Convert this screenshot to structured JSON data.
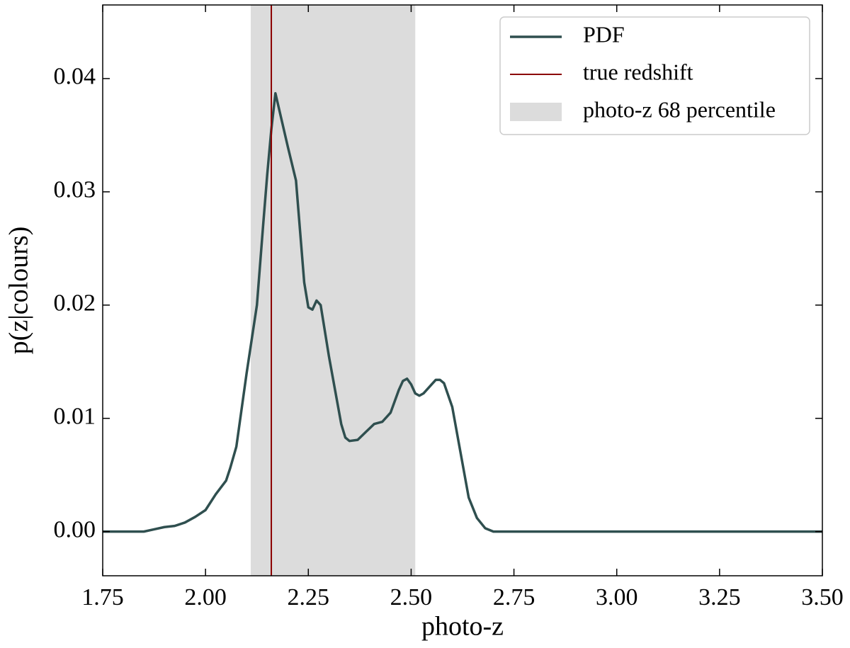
{
  "chart_data": {
    "type": "line",
    "x_label": "photo-z",
    "y_label": "p(z|colours)",
    "x": [
      1.75,
      1.85,
      1.875,
      1.9,
      1.925,
      1.95,
      1.975,
      2.0,
      2.025,
      2.05,
      2.06,
      2.075,
      2.1,
      2.125,
      2.14,
      2.15,
      2.16,
      2.17,
      2.2,
      2.22,
      2.24,
      2.25,
      2.26,
      2.27,
      2.28,
      2.3,
      2.32,
      2.33,
      2.34,
      2.35,
      2.37,
      2.39,
      2.41,
      2.43,
      2.45,
      2.47,
      2.48,
      2.49,
      2.5,
      2.51,
      2.52,
      2.53,
      2.55,
      2.56,
      2.57,
      2.58,
      2.6,
      2.62,
      2.64,
      2.66,
      2.68,
      2.7,
      2.75,
      3.5
    ],
    "series": [
      {
        "name": "PDF",
        "color": "#2f4f4f",
        "values": [
          0.0,
          0.0,
          0.0002,
          0.0004,
          0.0005,
          0.0008,
          0.0013,
          0.0019,
          0.0033,
          0.0045,
          0.0056,
          0.0075,
          0.014,
          0.02,
          0.027,
          0.0315,
          0.0355,
          0.0387,
          0.034,
          0.031,
          0.022,
          0.0198,
          0.0196,
          0.0204,
          0.02,
          0.0155,
          0.0115,
          0.0095,
          0.0083,
          0.008,
          0.0081,
          0.0088,
          0.0095,
          0.0097,
          0.0105,
          0.0125,
          0.0133,
          0.0135,
          0.013,
          0.0122,
          0.012,
          0.0122,
          0.013,
          0.0134,
          0.0134,
          0.0131,
          0.011,
          0.007,
          0.003,
          0.0012,
          0.0003,
          0.0,
          0.0,
          0.0
        ]
      }
    ],
    "reference_line": {
      "name": "true redshift",
      "x": 2.16,
      "color": "#8b0000"
    },
    "shaded_span": {
      "name": "photo-z 68 percentile",
      "x": [
        2.11,
        2.51
      ],
      "color": "#dcdcdc"
    },
    "xlim": [
      1.75,
      3.5
    ],
    "ylim": [
      -0.0039,
      0.0465
    ],
    "xticks": [
      {
        "value": 1.75,
        "label": "1.75"
      },
      {
        "value": 2.0,
        "label": "2.00"
      },
      {
        "value": 2.25,
        "label": "2.25"
      },
      {
        "value": 2.5,
        "label": "2.50"
      },
      {
        "value": 2.75,
        "label": "2.75"
      },
      {
        "value": 3.0,
        "label": "3.00"
      },
      {
        "value": 3.25,
        "label": "3.25"
      },
      {
        "value": 3.5,
        "label": "3.50"
      }
    ],
    "yticks": [
      {
        "value": 0.0,
        "label": "0.00"
      },
      {
        "value": 0.01,
        "label": "0.01"
      },
      {
        "value": 0.02,
        "label": "0.02"
      },
      {
        "value": 0.03,
        "label": "0.03"
      },
      {
        "value": 0.04,
        "label": "0.04"
      }
    ],
    "legend": "upper right"
  }
}
